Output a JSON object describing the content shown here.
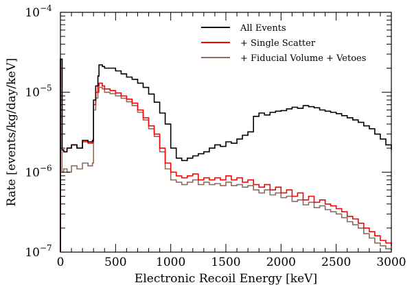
{
  "chart_data": {
    "type": "line",
    "line_style": "step",
    "title": "",
    "xlabel": "Electronic Recoil Energy [keV]",
    "ylabel": "Rate [events/kg/day/keV]",
    "xlim": [
      0,
      3000
    ],
    "ylim": [
      1e-07,
      0.0001
    ],
    "yscale": "log",
    "grid": false,
    "legend_position": "top-right",
    "x_ticks": [
      {
        "value": 0,
        "label": "0"
      },
      {
        "value": 500,
        "label": "500"
      },
      {
        "value": 1000,
        "label": "1000"
      },
      {
        "value": 1500,
        "label": "1500"
      },
      {
        "value": 2000,
        "label": "2000"
      },
      {
        "value": 2500,
        "label": "2500"
      },
      {
        "value": 3000,
        "label": "3000"
      }
    ],
    "y_ticks": [
      {
        "value": 1e-07,
        "base": "10",
        "exp": "−7"
      },
      {
        "value": 1e-06,
        "base": "10",
        "exp": "−6"
      },
      {
        "value": 1e-05,
        "base": "10",
        "exp": "−5"
      },
      {
        "value": 0.0001,
        "base": "10",
        "exp": "−4"
      }
    ],
    "series": [
      {
        "name": "All Events",
        "color": "#000000",
        "x": [
          0,
          15,
          30,
          60,
          100,
          150,
          200,
          250,
          290,
          300,
          320,
          340,
          350,
          380,
          400,
          450,
          500,
          550,
          600,
          650,
          700,
          750,
          800,
          850,
          900,
          950,
          1000,
          1050,
          1100,
          1150,
          1200,
          1250,
          1300,
          1350,
          1400,
          1450,
          1500,
          1550,
          1600,
          1650,
          1700,
          1750,
          1800,
          1850,
          1900,
          1950,
          2000,
          2050,
          2100,
          2150,
          2200,
          2250,
          2300,
          2350,
          2400,
          2450,
          2500,
          2550,
          2600,
          2650,
          2700,
          2750,
          2800,
          2850,
          2900,
          2950,
          3000
        ],
        "y": [
          2.6e-05,
          1.9e-06,
          1.8e-06,
          2e-06,
          2.2e-06,
          2e-06,
          2.5e-06,
          2.4e-06,
          2.5e-06,
          8e-06,
          1.2e-05,
          1.6e-05,
          2.2e-05,
          2.1e-05,
          2e-05,
          2e-05,
          1.85e-05,
          1.7e-05,
          1.55e-05,
          1.45e-05,
          1.3e-05,
          1.15e-05,
          9.5e-06,
          7.5e-06,
          5.5e-06,
          4e-06,
          2e-06,
          1.5e-06,
          1.4e-06,
          1.5e-06,
          1.6e-06,
          1.7e-06,
          1.8e-06,
          2e-06,
          2.2e-06,
          2.1e-06,
          2.4e-06,
          2.3e-06,
          2.6e-06,
          2.9e-06,
          3.2e-06,
          5e-06,
          5.5e-06,
          5.2e-06,
          5.6e-06,
          5.8e-06,
          5.9e-06,
          6.2e-06,
          6.5e-06,
          6.3e-06,
          6.8e-06,
          6.6e-06,
          6.4e-06,
          6e-06,
          5.8e-06,
          5.6e-06,
          5.4e-06,
          5.1e-06,
          4.8e-06,
          4.5e-06,
          4.2e-06,
          3.8e-06,
          3.5e-06,
          3e-06,
          2.6e-06,
          2.2e-06,
          1.9e-06
        ]
      },
      {
        "name": "+ Single Scatter",
        "color": "#ff0000",
        "x": [
          0,
          15,
          30,
          60,
          100,
          150,
          200,
          250,
          290,
          300,
          320,
          340,
          350,
          380,
          400,
          450,
          500,
          550,
          600,
          650,
          700,
          750,
          800,
          850,
          900,
          950,
          1000,
          1050,
          1100,
          1150,
          1200,
          1250,
          1300,
          1350,
          1400,
          1450,
          1500,
          1550,
          1600,
          1650,
          1700,
          1750,
          1800,
          1850,
          1900,
          1950,
          2000,
          2050,
          2100,
          2150,
          2200,
          2250,
          2300,
          2350,
          2400,
          2450,
          2500,
          2550,
          2600,
          2650,
          2700,
          2750,
          2800,
          2850,
          2900,
          2950,
          3000
        ],
        "y": [
          2.6e-05,
          1.9e-06,
          1.8e-06,
          2e-06,
          2.2e-06,
          2e-06,
          2.4e-06,
          2.3e-06,
          2.4e-06,
          7e-06,
          1e-05,
          1.2e-05,
          1.3e-05,
          1.2e-05,
          1.1e-05,
          1.05e-05,
          9.8e-06,
          9e-06,
          8.2e-06,
          7.3e-06,
          6e-06,
          4.8e-06,
          3.8e-06,
          3e-06,
          2e-06,
          1.3e-06,
          1e-06,
          9e-07,
          8.5e-07,
          9e-07,
          9.5e-07,
          8e-07,
          8.5e-07,
          8e-07,
          8.5e-07,
          8e-07,
          9e-07,
          8e-07,
          8.5e-07,
          7.5e-07,
          8e-07,
          7e-07,
          6.5e-07,
          7e-07,
          6e-07,
          6.5e-07,
          5.5e-07,
          6e-07,
          5e-07,
          5.5e-07,
          4.5e-07,
          5e-07,
          4.2e-07,
          4.5e-07,
          4e-07,
          3.8e-07,
          3.5e-07,
          3.2e-07,
          2.8e-07,
          2.6e-07,
          2.3e-07,
          2e-07,
          1.8e-07,
          1.6e-07,
          1.4e-07,
          1.3e-07,
          1.2e-07
        ]
      },
      {
        "name": "+ Fiducial Volume + Vetoes",
        "color": "#8b6b5d",
        "x": [
          0,
          15,
          30,
          60,
          100,
          150,
          200,
          250,
          290,
          300,
          320,
          340,
          350,
          380,
          400,
          450,
          500,
          550,
          600,
          650,
          700,
          750,
          800,
          850,
          900,
          950,
          1000,
          1050,
          1100,
          1150,
          1200,
          1250,
          1300,
          1350,
          1400,
          1450,
          1500,
          1550,
          1600,
          1650,
          1700,
          1750,
          1800,
          1850,
          1900,
          1950,
          2000,
          2050,
          2100,
          2150,
          2200,
          2250,
          2300,
          2350,
          2400,
          2450,
          2500,
          2550,
          2600,
          2650,
          2700,
          2750,
          2800,
          2850,
          2900,
          2950,
          3000
        ],
        "y": [
          2.6e-05,
          1e-06,
          1.1e-06,
          1e-06,
          1.2e-06,
          1.1e-06,
          1.3e-06,
          1.2e-06,
          1.3e-06,
          6e-06,
          8.5e-06,
          1e-05,
          1.15e-05,
          1.1e-05,
          1e-05,
          9.6e-06,
          9e-06,
          8.4e-06,
          7.6e-06,
          6.8e-06,
          5.6e-06,
          4.5e-06,
          3.5e-06,
          2.8e-06,
          1.8e-06,
          1.1e-06,
          8e-07,
          7.5e-07,
          7e-07,
          7.5e-07,
          8e-07,
          7e-07,
          7.5e-07,
          7e-07,
          7.2e-07,
          6.8e-07,
          7.5e-07,
          6.8e-07,
          7e-07,
          6.5e-07,
          6.8e-07,
          6e-07,
          5.5e-07,
          6e-07,
          5.2e-07,
          5.5e-07,
          4.8e-07,
          5e-07,
          4.3e-07,
          4.5e-07,
          3.9e-07,
          4.2e-07,
          3.6e-07,
          3.8e-07,
          3.4e-07,
          3.2e-07,
          3e-07,
          2.7e-07,
          2.4e-07,
          2.2e-07,
          2e-07,
          1.7e-07,
          1.5e-07,
          1.3e-07,
          1.2e-07,
          1.1e-07,
          1.05e-07
        ]
      }
    ]
  }
}
